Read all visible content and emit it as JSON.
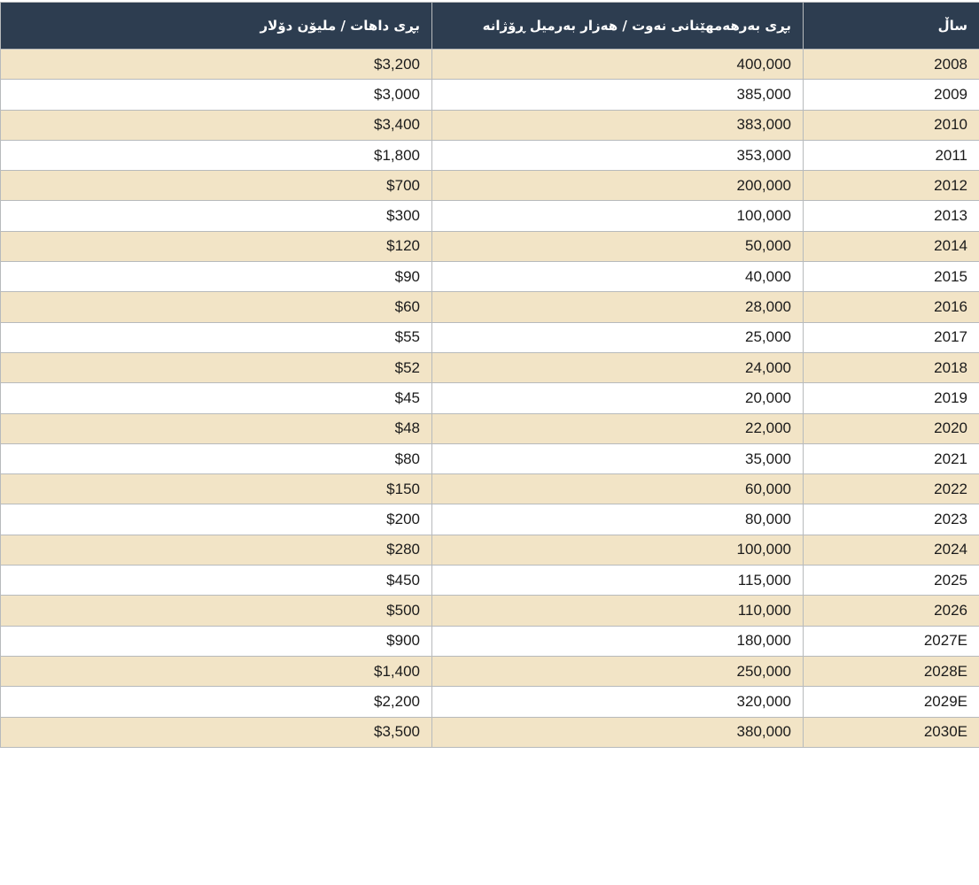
{
  "colors": {
    "header_bg": "#2d3d50",
    "header_text": "#ffffff",
    "row_alt_bg": "#f2e4c6",
    "row_bg": "#ffffff",
    "border": "#b7babc",
    "body_text": "#1b1b1b"
  },
  "table": {
    "direction": "rtl",
    "headers": [
      "ساڵ",
      "بڕی بەرهەمهێنانی نەوت / هەزار بەرمیل ڕۆژانە",
      "بڕی داهات / ملیۆن دۆلار"
    ],
    "rows": [
      [
        "2008",
        "400,000",
        "$3,200"
      ],
      [
        "2009",
        "385,000",
        "$3,000"
      ],
      [
        "2010",
        "383,000",
        "$3,400"
      ],
      [
        "2011",
        "353,000",
        "$1,800"
      ],
      [
        "2012",
        "200,000",
        "$700"
      ],
      [
        "2013",
        "100,000",
        "$300"
      ],
      [
        "2014",
        "50,000",
        "$120"
      ],
      [
        "2015",
        "40,000",
        "$90"
      ],
      [
        "2016",
        "28,000",
        "$60"
      ],
      [
        "2017",
        "25,000",
        "$55"
      ],
      [
        "2018",
        "24,000",
        "$52"
      ],
      [
        "2019",
        "20,000",
        "$45"
      ],
      [
        "2020",
        "22,000",
        "$48"
      ],
      [
        "2021",
        "35,000",
        "$80"
      ],
      [
        "2022",
        "60,000",
        "$150"
      ],
      [
        "2023",
        "80,000",
        "$200"
      ],
      [
        "2024",
        "100,000",
        "$280"
      ],
      [
        "2025",
        "115,000",
        "$450"
      ],
      [
        "2026",
        "110,000",
        "$500"
      ],
      [
        "2027E",
        "180,000",
        "$900"
      ],
      [
        "2028E",
        "250,000",
        "$1,400"
      ],
      [
        "2029E",
        "320,000",
        "$2,200"
      ],
      [
        "2030E",
        "380,000",
        "$3,500"
      ]
    ]
  },
  "chart_data": {
    "type": "table",
    "columns": [
      "ساڵ",
      "بڕی بەرهەمهێنانی نەوت / هەزار بەرمیل ڕۆژانە",
      "بڕی داهات / ملیۆن دۆلار"
    ],
    "years": [
      "2008",
      "2009",
      "2010",
      "2011",
      "2012",
      "2013",
      "2014",
      "2015",
      "2016",
      "2017",
      "2018",
      "2019",
      "2020",
      "2021",
      "2022",
      "2023",
      "2024",
      "2025",
      "2026",
      "2027E",
      "2028E",
      "2029E",
      "2030E"
    ],
    "oil_production_thousand_barrels_daily": [
      400000,
      385000,
      383000,
      353000,
      200000,
      100000,
      50000,
      40000,
      28000,
      25000,
      24000,
      20000,
      22000,
      35000,
      60000,
      80000,
      100000,
      115000,
      110000,
      180000,
      250000,
      320000,
      380000
    ],
    "revenue_million_dollars": [
      3200,
      3000,
      3400,
      1800,
      700,
      300,
      120,
      90,
      60,
      55,
      52,
      45,
      48,
      80,
      150,
      200,
      280,
      450,
      500,
      900,
      1400,
      2200,
      3500
    ]
  }
}
